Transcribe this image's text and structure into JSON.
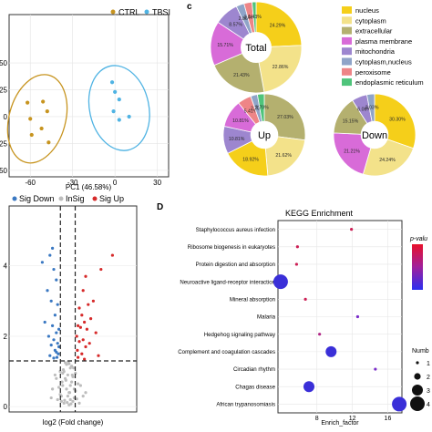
{
  "panel_labels": {
    "c": "c",
    "d": "D"
  },
  "chart_data": [
    {
      "id": "pca",
      "type": "scatter",
      "title": "",
      "xlabel": "PC1 (46.58%)",
      "ylabel": "",
      "xlim": [
        -75,
        38
      ],
      "ylim": [
        -56,
        95
      ],
      "xticks": [
        "-60",
        "-30",
        "0",
        "30"
      ],
      "yticks": [
        "50",
        "25",
        "0",
        "25",
        "50"
      ],
      "ytick_values": [
        50,
        25,
        0,
        -25,
        -50
      ],
      "legend_position": "top",
      "series": [
        {
          "name": "CTRL",
          "color": "#c7941f",
          "x": [
            -62,
            -51,
            -48,
            -60,
            -52,
            -59,
            -47
          ],
          "y": [
            13,
            14,
            5,
            -2,
            -11,
            -17,
            -24
          ]
        },
        {
          "name": "TBSI",
          "color": "#4fb3e3",
          "x": [
            -2,
            0,
            3,
            -1,
            3,
            10
          ],
          "y": [
            32,
            23,
            16,
            5,
            -3,
            0
          ]
        }
      ],
      "ellipses": [
        {
          "series": "CTRL",
          "cx": -55,
          "cy": -2,
          "rx": 20,
          "ry": 42,
          "rotate": 15
        },
        {
          "series": "TBSI",
          "cx": 3,
          "cy": 8,
          "rx": 21,
          "ry": 40,
          "rotate": -12
        }
      ]
    },
    {
      "id": "pie-total",
      "type": "pie",
      "label": "Total",
      "slices": [
        {
          "category": "nucleus",
          "value": 24.29,
          "label": "24.29%"
        },
        {
          "category": "cytoplasm",
          "value": 22.86,
          "label": "22.86%"
        },
        {
          "category": "extracellular",
          "value": 21.43,
          "label": "21.43%"
        },
        {
          "category": "plasma membrane",
          "value": 15.71,
          "label": "15.71%"
        },
        {
          "category": "mitochondria",
          "value": 8.57,
          "label": "8.57%"
        },
        {
          "category": "cytoplasm,nucleus",
          "value": 2.86,
          "label": "2.86%"
        },
        {
          "category": "peroxisome",
          "value": 2.86,
          "label": "2.86%"
        },
        {
          "category": "endoplasmic reticulum",
          "value": 1.43,
          "label": "1.43%"
        }
      ]
    },
    {
      "id": "pie-up",
      "type": "pie",
      "label": "Up",
      "slices": [
        {
          "category": "extracellular",
          "value": 27.03,
          "label": "27.03%"
        },
        {
          "category": "cytoplasm",
          "value": 21.62,
          "label": "21.62%"
        },
        {
          "category": "nucleus",
          "value": 18.92,
          "label": "18.92%"
        },
        {
          "category": "mitochondria",
          "value": 10.81,
          "label": "10.81%"
        },
        {
          "category": "plasma membrane",
          "value": 10.81,
          "label": "10.81%"
        },
        {
          "category": "peroxisome",
          "value": 5.41,
          "label": "5.41%"
        },
        {
          "category": "cytoplasm,nucleus",
          "value": 2.7,
          "label": "2.70%"
        },
        {
          "category": "endoplasmic reticulum",
          "value": 2.7,
          "label": "2.70%"
        }
      ]
    },
    {
      "id": "pie-down",
      "type": "pie",
      "label": "Down",
      "slices": [
        {
          "category": "nucleus",
          "value": 30.3,
          "label": "30.30%"
        },
        {
          "category": "cytoplasm",
          "value": 24.24,
          "label": "24.24%"
        },
        {
          "category": "plasma membrane",
          "value": 21.21,
          "label": "21.21%"
        },
        {
          "category": "extracellular",
          "value": 15.15,
          "label": "15.15%"
        },
        {
          "category": "mitochondria",
          "value": 6.06,
          "label": "6.06%"
        },
        {
          "category": "cytoplasm,nucleus",
          "value": 3.03,
          "label": "3.03%"
        }
      ]
    },
    {
      "id": "volcano",
      "type": "scatter",
      "title": "",
      "xlabel": "log2 (Fold change)",
      "ylabel": "",
      "xlim": [
        -4.6,
        5.4
      ],
      "ylim": [
        -0.15,
        5.7
      ],
      "xticks": [],
      "yticks": [
        "0",
        "2",
        "4"
      ],
      "ytick_values": [
        0,
        2,
        4
      ],
      "threshold_lines": {
        "x": [
          -0.58,
          0.58
        ],
        "y": 1.3
      },
      "legend_position": "top",
      "series": [
        {
          "name": "Sig Down",
          "color": "#3a78c2",
          "x": [
            -1.2,
            -1.4,
            -2.0,
            -1.1,
            -0.9,
            -1.6,
            -1.3,
            -0.8,
            -1.0,
            -1.8,
            -1.2,
            -0.7,
            -0.9,
            -1.5,
            -1.1,
            -0.8,
            -1.3,
            -0.7,
            -1.0,
            -0.9,
            -0.75,
            -1.4,
            -0.85,
            -1.1
          ],
          "y": [
            4.5,
            4.3,
            4.1,
            3.9,
            3.6,
            3.3,
            3.0,
            2.9,
            2.6,
            2.4,
            2.3,
            2.2,
            2.1,
            2.0,
            1.9,
            1.8,
            1.75,
            1.7,
            1.6,
            1.55,
            1.5,
            1.45,
            1.4,
            1.38
          ]
        },
        {
          "name": "InSig",
          "color": "#bdbdbd",
          "x": [
            -0.3,
            0.2,
            -0.5,
            0.4,
            -0.1,
            0.1,
            -0.4,
            0.5,
            -0.2,
            0.3,
            -0.6,
            0.6,
            0.0,
            -0.3,
            0.2,
            -0.7,
            0.8,
            -0.1,
            0.1,
            0.4,
            -0.4,
            0.3,
            -0.2,
            0.0,
            -0.8,
            0.9,
            0.5,
            -0.5,
            0.2,
            -0.15,
            0.15,
            -0.35,
            0.35,
            0.05,
            -0.05,
            1.2,
            -1.2,
            0.7,
            -0.9,
            1.0,
            -1.0,
            0.25,
            -0.25,
            1.4,
            -1.3,
            0.45,
            -0.45,
            0.6,
            -0.6,
            0.1
          ],
          "y": [
            0.1,
            0.2,
            0.3,
            0.15,
            0.5,
            0.4,
            0.6,
            0.25,
            0.8,
            0.7,
            0.35,
            0.45,
            0.9,
            1.0,
            1.1,
            0.55,
            0.65,
            1.2,
            0.05,
            0.85,
            0.95,
            1.15,
            1.25,
            0.3,
            0.2,
            0.1,
            0.5,
            0.15,
            0.6,
            0.75,
            0.4,
            1.05,
            0.9,
            1.27,
            0.12,
            0.3,
            0.5,
            0.22,
            0.8,
            0.6,
            0.9,
            0.08,
            0.18,
            0.4,
            0.25,
            1.1,
            0.7,
            0.95,
            1.0,
            1.22
          ]
        },
        {
          "name": "Sig Up",
          "color": "#d62a2a",
          "x": [
            3.5,
            2.6,
            1.4,
            1.2,
            2.0,
            1.6,
            0.9,
            1.1,
            1.8,
            1.3,
            0.8,
            1.0,
            1.5,
            2.2,
            0.7,
            1.2,
            0.9,
            1.7,
            1.4,
            0.75,
            1.1,
            2.4,
            0.8,
            1.3
          ],
          "y": [
            4.3,
            3.9,
            3.7,
            3.3,
            3.0,
            2.9,
            2.8,
            2.6,
            2.5,
            2.4,
            2.3,
            2.25,
            2.2,
            2.1,
            2.0,
            1.9,
            1.85,
            1.8,
            1.7,
            1.6,
            1.5,
            1.45,
            1.4,
            1.35
          ]
        }
      ]
    },
    {
      "id": "kegg",
      "type": "scatter",
      "title": "KEGG Enrichment",
      "xlabel": "Enrich_factor",
      "ylabel": "",
      "xlim": [
        3.6,
        17.6
      ],
      "xticks": [
        "8",
        "12",
        "16"
      ],
      "xtick_values": [
        8,
        12,
        16
      ],
      "categories": [
        "Staphylococcus aureus infection",
        "Ribosome biogenesis in eukaryotes",
        "Protein digestion and absorption",
        "Neuroactive ligand-receptor interaction",
        "Mineral absorption",
        "Malaria",
        "Hedgehog signaling pathway",
        "Complement and coagulation cascades",
        "Circadian rhythm",
        "Chagas disease",
        "African trypanosomiasis"
      ],
      "enrich_factor": [
        11.9,
        5.8,
        5.7,
        3.9,
        6.7,
        12.6,
        8.3,
        9.6,
        14.6,
        7.1,
        17.3
      ],
      "number": [
        1,
        1,
        1,
        4,
        1,
        1,
        1,
        3,
        1,
        3,
        4
      ],
      "color_key": [
        "#cc1f55",
        "#cc1f55",
        "#cc1f55",
        "#3a2fd8",
        "#cc1f55",
        "#7a2cc9",
        "#b02585",
        "#3a2fd8",
        "#7a2cc9",
        "#3a2fd8",
        "#3a2fd8"
      ],
      "color_legend_title": "p-valu",
      "size_legend_title": "Numb",
      "size_legend_values": [
        "1",
        "2",
        "3",
        "4"
      ],
      "legend_position": "right"
    }
  ],
  "pie_legend": [
    {
      "category": "nucleus",
      "color": "#f5cf1a"
    },
    {
      "category": "cytoplasm",
      "color": "#f3e28a"
    },
    {
      "category": "extracellular",
      "color": "#b4b06f"
    },
    {
      "category": "plasma membrane",
      "color": "#d86bd8"
    },
    {
      "category": "mitochondria",
      "color": "#9d86cf"
    },
    {
      "category": "cytoplasm,nucleus",
      "color": "#8fa4c8"
    },
    {
      "category": "peroxisome",
      "color": "#ee8587"
    },
    {
      "category": "endoplasmic reticulum",
      "color": "#4fc47b"
    }
  ]
}
